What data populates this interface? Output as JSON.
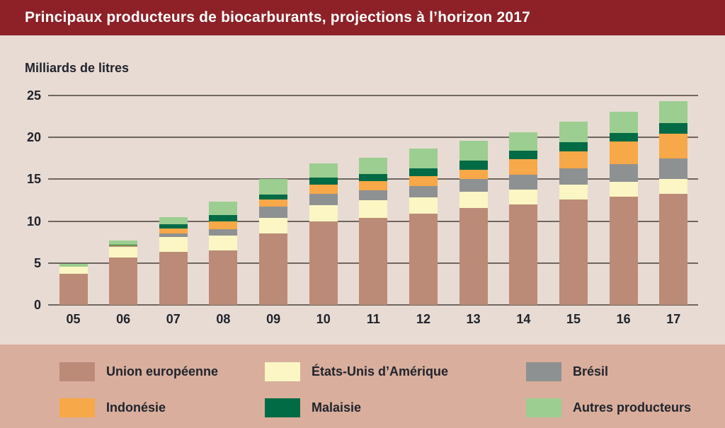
{
  "title": "Principaux producteurs de biocarburants, projections à l’horizon 2017",
  "colors": {
    "title_bar_bg": "#8D2127",
    "title_text": "#FFFFFF",
    "chart_bg": "#E8DBD3",
    "legend_bg": "#D9AE9D",
    "gridline": "#6E6660",
    "text_dark": "#20242C"
  },
  "chart_data": {
    "type": "bar",
    "stacked": true,
    "title": "Principaux producteurs de biocarburants, projections à l’horizon 2017",
    "ylabel": "Milliards de litres",
    "xlabel": "",
    "categories": [
      "05",
      "06",
      "07",
      "08",
      "09",
      "10",
      "11",
      "12",
      "13",
      "14",
      "15",
      "16",
      "17"
    ],
    "series": [
      {
        "name": "Union européenne",
        "color": "#BB8B77",
        "values": [
          3.7,
          5.7,
          6.3,
          6.5,
          8.5,
          10.0,
          10.4,
          10.9,
          11.6,
          12.0,
          12.6,
          12.9,
          13.3
        ]
      },
      {
        "name": "États-Unis d’Amérique",
        "color": "#FBF6C3",
        "values": [
          0.9,
          1.2,
          1.8,
          1.8,
          1.9,
          1.9,
          2.1,
          1.9,
          1.9,
          1.8,
          1.8,
          1.8,
          1.7
        ]
      },
      {
        "name": "Brésil",
        "color": "#8E9192",
        "values": [
          0.0,
          0.1,
          0.4,
          0.7,
          1.3,
          1.4,
          1.2,
          1.4,
          1.5,
          1.7,
          1.9,
          2.1,
          2.5
        ]
      },
      {
        "name": "Indonésie",
        "color": "#F7A848",
        "values": [
          0.0,
          0.1,
          0.6,
          1.0,
          0.9,
          1.1,
          1.1,
          1.2,
          1.1,
          1.9,
          2.0,
          2.7,
          2.9
        ]
      },
      {
        "name": "Malaisie",
        "color": "#016B45",
        "values": [
          0.0,
          0.1,
          0.5,
          0.7,
          0.6,
          0.8,
          0.8,
          0.9,
          1.1,
          1.0,
          1.1,
          1.0,
          1.3
        ]
      },
      {
        "name": "Autres producteurs",
        "color": "#9BCE90",
        "values": [
          0.3,
          0.5,
          0.9,
          1.6,
          1.8,
          1.7,
          2.0,
          2.4,
          2.4,
          2.2,
          2.5,
          2.6,
          2.6
        ]
      }
    ],
    "y_ticks": [
      0,
      5,
      10,
      15,
      20,
      25
    ],
    "ylim": [
      0,
      25
    ],
    "grid": true,
    "legend_position": "bottom",
    "legend_rows": [
      [
        "Union européenne",
        "États-Unis d’Amérique",
        "Brésil"
      ],
      [
        "Indonésie",
        "Malaisie",
        "Autres producteurs"
      ]
    ]
  }
}
